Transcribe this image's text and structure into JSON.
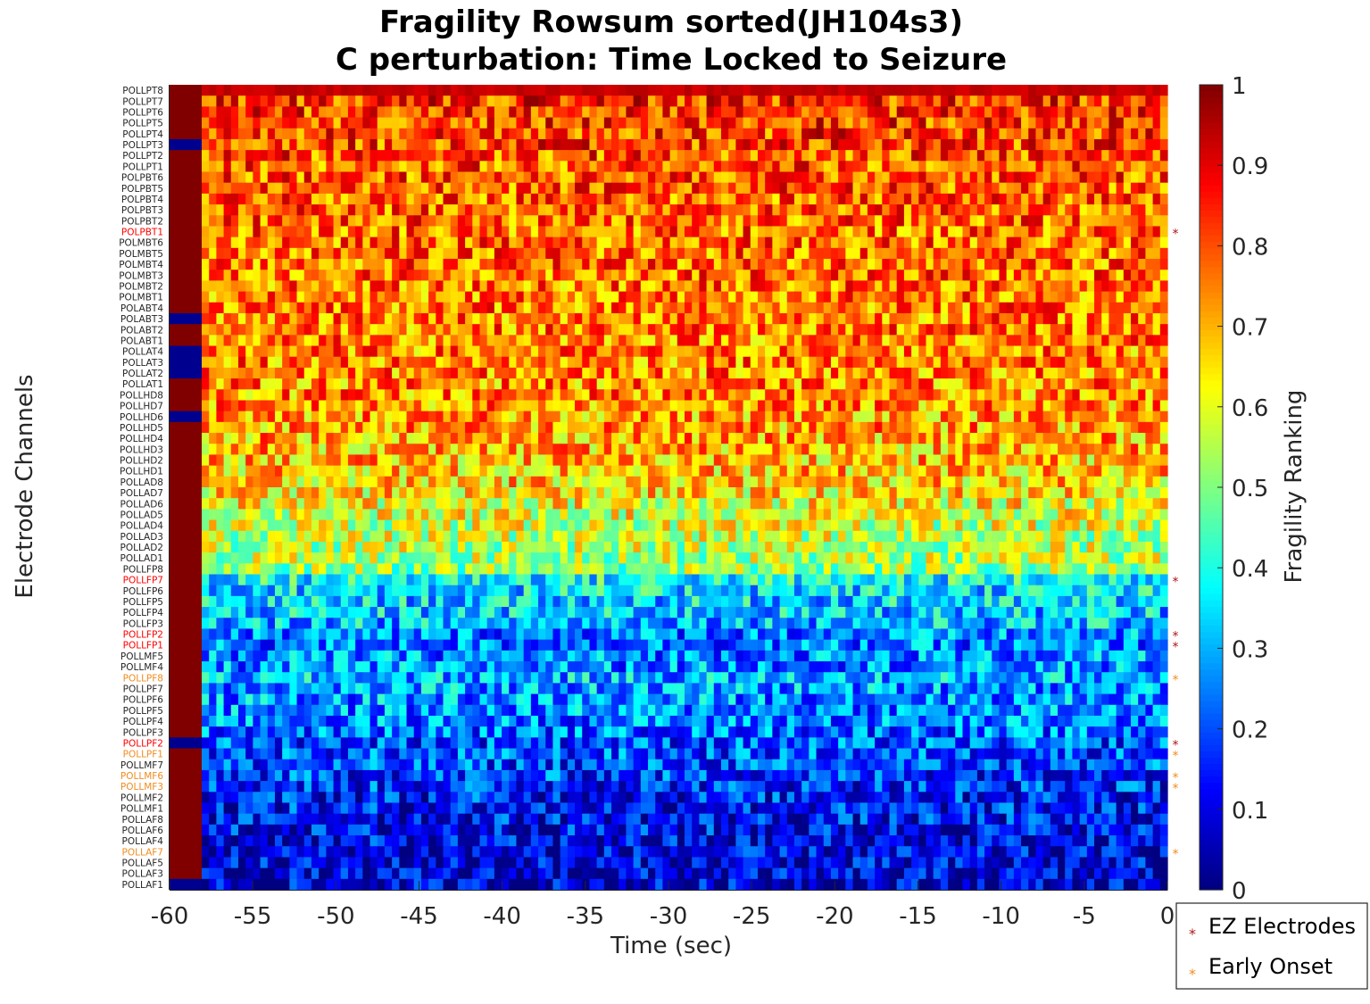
{
  "chart_data": {
    "type": "heatmap",
    "title_line1": "Fragility Rowsum sorted(JH104s3)",
    "title_line2": "C perturbation:  Time Locked to Seizure",
    "xlabel": "Time (sec)",
    "ylabel": "Electrode Channels",
    "colorbar_label": "Fragility Ranking",
    "colormap": "jet",
    "xlim": [
      -60,
      0
    ],
    "x_ticks": [
      -60,
      -55,
      -50,
      -45,
      -40,
      -35,
      -30,
      -25,
      -20,
      -15,
      -10,
      -5,
      0
    ],
    "x_tick_labels": [
      "-60",
      "-55",
      "-50",
      "-45",
      "-40",
      "-35",
      "-30",
      "-25",
      "-20",
      "-15",
      "-10",
      "-5",
      "0"
    ],
    "clim": [
      0,
      1
    ],
    "colorbar_ticks": [
      0,
      0.1,
      0.2,
      0.3,
      0.4,
      0.5,
      0.6,
      0.7,
      0.8,
      0.9,
      1
    ],
    "colorbar_tick_labels": [
      "0",
      "0.1",
      "0.2",
      "0.3",
      "0.4",
      "0.5",
      "0.6",
      "0.7",
      "0.8",
      "0.9",
      "1"
    ],
    "channels": [
      "POLLPT8",
      "POLLPT7",
      "POLLPT6",
      "POLLPT5",
      "POLLPT4",
      "POLLPT3",
      "POLLPT2",
      "POLLPT1",
      "POLPBT6",
      "POLPBT5",
      "POLPBT4",
      "POLPBT3",
      "POLPBT2",
      "POLPBT1",
      "POLMBT6",
      "POLMBT5",
      "POLMBT4",
      "POLMBT3",
      "POLMBT2",
      "POLMBT1",
      "POLABT4",
      "POLABT3",
      "POLABT2",
      "POLABT1",
      "POLLAT4",
      "POLLAT3",
      "POLLAT2",
      "POLLAT1",
      "POLLHD8",
      "POLLHD7",
      "POLLHD6",
      "POLLHD5",
      "POLLHD4",
      "POLLHD3",
      "POLLHD2",
      "POLLHD1",
      "POLLAD8",
      "POLLAD7",
      "POLLAD6",
      "POLLAD5",
      "POLLAD4",
      "POLLAD3",
      "POLLAD2",
      "POLLAD1",
      "POLLFP8",
      "POLLFP7",
      "POLLFP6",
      "POLLFP5",
      "POLLFP4",
      "POLLFP3",
      "POLLFP2",
      "POLLFP1",
      "POLLMF5",
      "POLLMF4",
      "POLLPF8",
      "POLLPF7",
      "POLLPF6",
      "POLLPF5",
      "POLLPF4",
      "POLLPF3",
      "POLLPF2",
      "POLLPF1",
      "POLLMF7",
      "POLLMF6",
      "POLLMF3",
      "POLLMF2",
      "POLLMF1",
      "POLLAF8",
      "POLLAF6",
      "POLLAF4",
      "POLLAF7",
      "POLLAF5",
      "POLLAF3",
      "POLLAF1"
    ],
    "ez_electrodes": [
      "POLPBT1",
      "POLLFP7",
      "POLLFP2",
      "POLLFP1",
      "POLLPF2"
    ],
    "early_onset_electrodes": [
      "POLLPF8",
      "POLLPF1",
      "POLLMF6",
      "POLLMF3",
      "POLLAF7"
    ],
    "side_marker_column_low_rows": [
      "POLLPT3",
      "POLABT3",
      "POLLAT4",
      "POLLAT3",
      "POLLAT2",
      "POLLHD6",
      "POLLPF2",
      "POLLAF1"
    ],
    "row_mean_fragility": [
      0.93,
      0.83,
      0.82,
      0.82,
      0.82,
      0.81,
      0.8,
      0.79,
      0.79,
      0.79,
      0.78,
      0.78,
      0.78,
      0.77,
      0.77,
      0.77,
      0.77,
      0.77,
      0.76,
      0.76,
      0.76,
      0.76,
      0.76,
      0.75,
      0.75,
      0.75,
      0.75,
      0.74,
      0.74,
      0.73,
      0.72,
      0.72,
      0.71,
      0.7,
      0.69,
      0.68,
      0.67,
      0.65,
      0.62,
      0.6,
      0.58,
      0.57,
      0.56,
      0.55,
      0.52,
      0.38,
      0.35,
      0.33,
      0.32,
      0.31,
      0.25,
      0.24,
      0.26,
      0.26,
      0.3,
      0.28,
      0.27,
      0.26,
      0.25,
      0.23,
      0.2,
      0.2,
      0.19,
      0.18,
      0.17,
      0.15,
      0.14,
      0.13,
      0.12,
      0.1,
      0.09,
      0.09,
      0.08,
      0.08
    ],
    "legend": {
      "position": "bottom-right",
      "entries": [
        {
          "label": "EZ Electrodes",
          "color": "#b01515"
        },
        {
          "label": "Early Onset",
          "color": "#f08c1e"
        }
      ]
    },
    "colors": {
      "ez_label": "#ff0000",
      "early_label": "#f08c1e",
      "side_high": "#800000",
      "side_low": "#00008f"
    }
  }
}
